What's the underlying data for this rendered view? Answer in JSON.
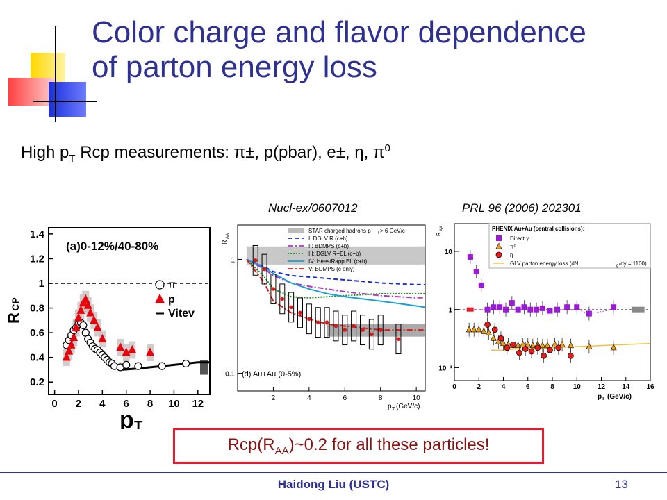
{
  "slide": {
    "title_line1": "Color charge and flavor dependence",
    "title_line2": "of parton energy loss",
    "subtitle_prefix": "High p",
    "subtitle_sub": "T",
    "subtitle_rest": " Rcp measurements: π±, p(pbar), e±, η, π",
    "subtitle_sup": "0",
    "ref_left": "Nucl-ex/0607012",
    "ref_right": "PRL 96 (2006) 202301",
    "callout_prefix": "Rcp(R",
    "callout_sub": "AA",
    "callout_rest": ")~0.2 for all these particles!",
    "footer": "Haidong Liu  (USTC)",
    "page": "13",
    "colors": {
      "title": "#2e3192",
      "callout_border": "#e8192c",
      "callout_text": "#8a1414"
    }
  },
  "chart_data": [
    {
      "type": "scatter",
      "panel_label": "(a)0-12%/40-80%",
      "ylabel_main": "R",
      "ylabel_sub": "CP",
      "xlabel_main": "p",
      "xlabel_sub": "T",
      "xticks": [
        "0",
        "2",
        "4",
        "6",
        "8",
        "10",
        "12"
      ],
      "yticks": [
        "0.2",
        "0.4",
        "0.6",
        "0.8",
        "1",
        "1.2",
        "1.4"
      ],
      "xlim": [
        -0.5,
        13
      ],
      "ylim": [
        0.1,
        1.45
      ],
      "legend": [
        {
          "symbol": "open-circle",
          "label": "π"
        },
        {
          "symbol": "triangle",
          "label": "p"
        },
        {
          "symbol": "line",
          "label": "Vitev"
        }
      ],
      "series": [
        {
          "name": "π",
          "marker": "open-circle",
          "color": "#000000",
          "x": [
            1.0,
            1.2,
            1.4,
            1.6,
            1.8,
            2.0,
            2.2,
            2.4,
            2.6,
            2.8,
            3.0,
            3.2,
            3.4,
            3.6,
            3.8,
            4.0,
            4.2,
            4.4,
            4.6,
            4.8,
            5.0,
            5.5,
            6.0,
            7.0,
            9.0,
            11.0
          ],
          "y": [
            0.5,
            0.54,
            0.58,
            0.62,
            0.64,
            0.67,
            0.68,
            0.66,
            0.6,
            0.55,
            0.52,
            0.49,
            0.47,
            0.46,
            0.44,
            0.42,
            0.4,
            0.38,
            0.36,
            0.35,
            0.33,
            0.32,
            0.34,
            0.33,
            0.33,
            0.35
          ]
        },
        {
          "name": "p",
          "marker": "triangle",
          "color": "#e8000b",
          "x": [
            1.0,
            1.2,
            1.4,
            1.6,
            1.8,
            2.0,
            2.2,
            2.4,
            2.6,
            2.8,
            3.0,
            3.3,
            3.6,
            4.0,
            5.5,
            6.0,
            6.5,
            8.0
          ],
          "y": [
            0.4,
            0.45,
            0.5,
            0.56,
            0.64,
            0.72,
            0.78,
            0.84,
            0.87,
            0.82,
            0.76,
            0.7,
            0.64,
            0.55,
            0.48,
            0.44,
            0.46,
            0.44
          ]
        }
      ],
      "curve": {
        "name": "Vitev",
        "x": [
          5.5,
          7,
          8,
          9,
          10,
          11,
          12,
          13
        ],
        "y": [
          0.3,
          0.31,
          0.32,
          0.33,
          0.34,
          0.35,
          0.36,
          0.36
        ]
      }
    },
    {
      "type": "line",
      "panel_label": "(d) Au+Au (0-5%)",
      "ylabel_main": "R",
      "ylabel_sub": "AA",
      "xlabel": "p",
      "xlabel_sub": "T",
      "xlabel_unit": "(GeV/c)",
      "xticks": [
        "2",
        "4",
        "6",
        "8",
        "10"
      ],
      "yticks": [
        "0.1",
        "1"
      ],
      "yscale": "log",
      "xlim": [
        0,
        10.5
      ],
      "ylim": [
        0.07,
        2
      ],
      "legend": [
        {
          "label": "STAR charged hadrons p",
          "sub": "T",
          "rest": " > 6 GeV/c",
          "style": "box",
          "color": "#808080"
        },
        {
          "label": "I:   DGLV R (c+b)",
          "style": "dashed",
          "color": "#1a2fcf"
        },
        {
          "label": "II:  BDMPS (c+b)",
          "style": "dashdot",
          "color": "#c030c0"
        },
        {
          "label": "III: DGLV R+EL (c+b)",
          "style": "dotted",
          "color": "#1a8a1a"
        },
        {
          "label": "IV: Hees/Rapp EL (c+b)",
          "style": "solid",
          "color": "#1aa0d8"
        },
        {
          "label": "V:   BDMPS  (c only)",
          "style": "dashdotred",
          "color": "#d81a1a"
        }
      ],
      "series": [
        {
          "name": "I:   DGLV R (c+b)",
          "x": [
            0.5,
            1.5,
            2,
            3,
            4,
            5,
            6,
            7,
            8,
            9,
            10,
            10.5
          ],
          "y": [
            1.0,
            0.86,
            0.78,
            0.72,
            0.7,
            0.68,
            0.66,
            0.64,
            0.62,
            0.61,
            0.6,
            0.6
          ]
        },
        {
          "name": "II:  BDMPS (c+b)",
          "x": [
            0.5,
            1.5,
            2,
            3,
            4,
            5,
            6,
            7,
            8,
            9,
            10,
            10.5
          ],
          "y": [
            1.0,
            0.82,
            0.72,
            0.62,
            0.58,
            0.55,
            0.52,
            0.5,
            0.48,
            0.47,
            0.46,
            0.46
          ]
        },
        {
          "name": "III: DGLV R+EL (c+b)",
          "x": [
            0.5,
            1.5,
            2,
            3,
            4,
            5,
            6,
            7,
            8,
            9,
            10,
            10.5
          ],
          "y": [
            1.0,
            0.7,
            0.55,
            0.47,
            0.46,
            0.47,
            0.48,
            0.49,
            0.5,
            0.5,
            0.5,
            0.5
          ]
        },
        {
          "name": "IV: Hees/Rapp EL (c+b)",
          "x": [
            0.5,
            1.5,
            2,
            3,
            4,
            5,
            6,
            7,
            8,
            9,
            10,
            10.5
          ],
          "y": [
            1.0,
            0.85,
            0.75,
            0.62,
            0.55,
            0.5,
            0.47,
            0.45,
            0.43,
            0.41,
            0.39,
            0.38
          ]
        },
        {
          "name": "V:   BDMPS  (c only)",
          "x": [
            0.5,
            1.5,
            2,
            3,
            4,
            5,
            6,
            7,
            8,
            9,
            10,
            10.5
          ],
          "y": [
            1.0,
            0.62,
            0.43,
            0.34,
            0.3,
            0.27,
            0.26,
            0.25,
            0.24,
            0.24,
            0.24,
            0.24
          ]
        }
      ],
      "points": {
        "x": [
          1.0,
          1.5,
          2.0,
          2.5,
          3.0,
          3.5,
          4.0,
          4.5,
          5.0,
          5.5,
          6.0,
          6.5,
          7.0,
          7.5,
          8.0,
          9.0
        ],
        "y": [
          0.98,
          0.82,
          0.55,
          0.45,
          0.38,
          0.34,
          0.3,
          0.28,
          0.28,
          0.26,
          0.24,
          0.26,
          0.24,
          0.22,
          0.24,
          0.2
        ],
        "color": "#d81a1a"
      },
      "star_band": {
        "x": [
          0.5,
          10.5
        ],
        "y": [
          0.9,
          1.3
        ]
      }
    },
    {
      "type": "scatter",
      "legend_title": "PHENIX Au+Au (central collisions):",
      "xlabel": "p",
      "xlabel_sub": "T",
      "xlabel_unit": "(GeV/c)",
      "ylabel_main": "R",
      "ylabel_sub": "AA",
      "xticks": [
        "0",
        "2",
        "4",
        "6",
        "8",
        "10",
        "12",
        "14",
        "16"
      ],
      "yticks": [
        "10⁻¹",
        "1",
        "10"
      ],
      "yscale": "log",
      "xlim": [
        0,
        16
      ],
      "ylim": [
        0.06,
        30
      ],
      "legend": [
        {
          "symbol": "square",
          "label": "Direct γ",
          "color": "#9a1ad6"
        },
        {
          "symbol": "triangle",
          "label": "π⁰",
          "color": "#f0a020"
        },
        {
          "symbol": "circle",
          "label": "η",
          "color": "#e81a1a"
        },
        {
          "symbol": "line",
          "label": "GLV parton energy loss (dN",
          "sub": "g",
          "rest": "/dy = 1100)",
          "color": "#f0c040"
        }
      ],
      "series": [
        {
          "name": "Direct γ",
          "marker": "square",
          "color": "#9a1ad6",
          "x": [
            1.3,
            1.8,
            2.2,
            2.7,
            3.2,
            3.7,
            4.2,
            4.7,
            5.2,
            5.7,
            6.2,
            6.7,
            7.2,
            7.8,
            8.4,
            9.2,
            10,
            11,
            13
          ],
          "y": [
            8,
            4.5,
            2.6,
            1.0,
            1.1,
            1.1,
            1.0,
            1.3,
            1.0,
            1.1,
            1.0,
            1.0,
            1.05,
            0.95,
            1.0,
            1.1,
            1.1,
            0.85,
            1.1
          ]
        },
        {
          "name": "π⁰",
          "marker": "triangle",
          "color": "#f0a020",
          "x": [
            1.2,
            1.6,
            2.0,
            2.4,
            2.8,
            3.2,
            3.6,
            4.0,
            4.4,
            4.8,
            5.2,
            5.6,
            6.0,
            6.4,
            6.8,
            7.2,
            7.6,
            8.2,
            8.8,
            9.5,
            11,
            13
          ],
          "y": [
            0.45,
            0.45,
            0.45,
            0.42,
            0.4,
            0.32,
            0.28,
            0.26,
            0.25,
            0.24,
            0.24,
            0.25,
            0.25,
            0.24,
            0.25,
            0.24,
            0.24,
            0.25,
            0.25,
            0.24,
            0.23,
            0.22
          ]
        },
        {
          "name": "η",
          "marker": "circle",
          "color": "#e81a1a",
          "x": [
            2.7,
            3.3,
            3.8,
            4.3,
            4.8,
            5.3,
            5.8,
            6.3,
            6.8,
            7.3,
            7.8,
            8.5,
            9.5
          ],
          "y": [
            0.55,
            0.45,
            0.32,
            0.22,
            0.25,
            0.18,
            0.21,
            0.19,
            0.22,
            0.16,
            0.2,
            0.22,
            0.16
          ]
        }
      ],
      "curve": {
        "name": "GLV parton energy loss",
        "x": [
          3,
          4,
          5,
          6,
          8,
          10,
          12,
          14,
          16
        ],
        "y": [
          0.2,
          0.2,
          0.21,
          0.21,
          0.22,
          0.23,
          0.24,
          0.25,
          0.26
        ]
      }
    }
  ]
}
